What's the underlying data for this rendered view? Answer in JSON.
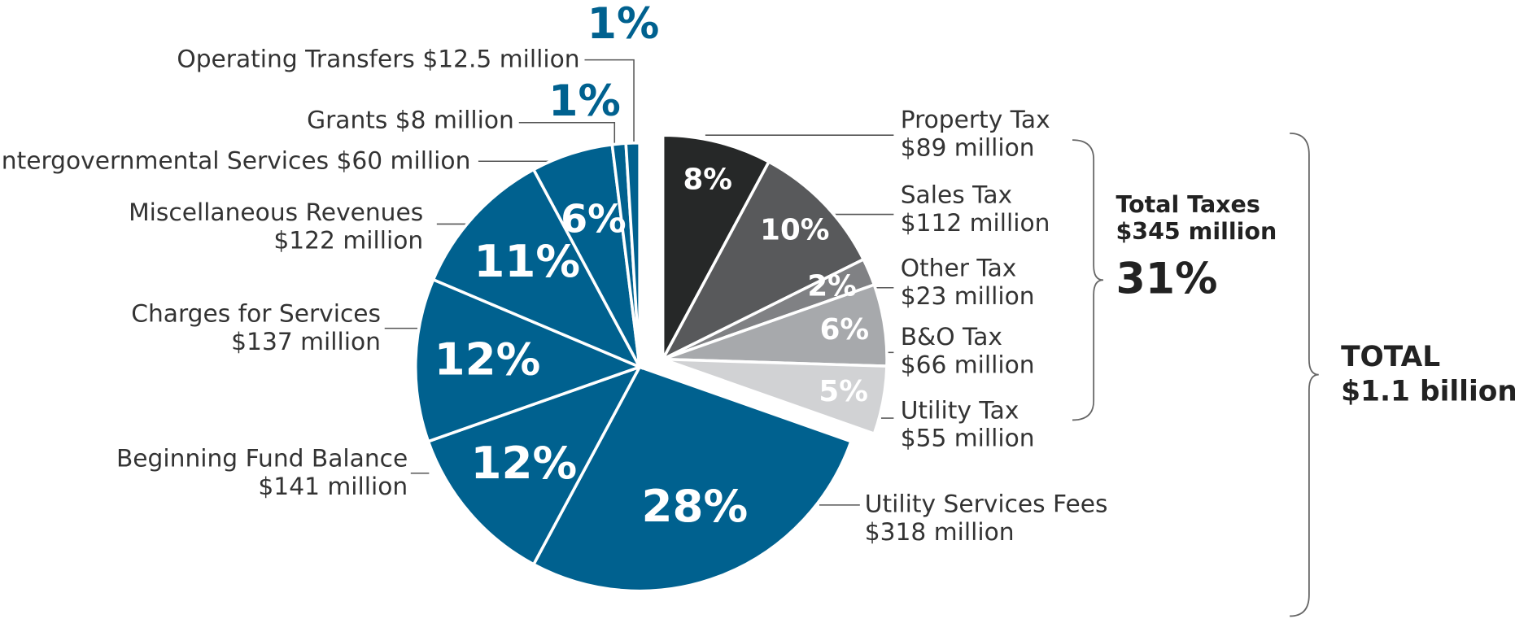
{
  "chart_data": {
    "type": "pie",
    "categories": [
      "Property Tax",
      "Sales Tax",
      "Other Tax",
      "B&O Tax",
      "Utility Tax",
      "Utility Services Fees",
      "Beginning Fund Balance",
      "Charges for Services",
      "Miscellaneous Revenues",
      "Intergovernmental Services",
      "Grants",
      "Operating Transfers"
    ],
    "amount_labels": [
      "$89 million",
      "$112 million",
      "$23 million",
      "$66 million",
      "$55 million",
      "$318 million",
      "$141 million",
      "$137 million",
      "$122 million",
      "$60 million",
      "$8 million",
      "$12.5 million"
    ],
    "values": [
      8,
      10,
      2,
      6,
      5,
      28,
      12,
      12,
      11,
      6,
      1,
      1
    ],
    "value_labels": [
      "8%",
      "10%",
      "2%",
      "6%",
      "5%",
      "28%",
      "12%",
      "12%",
      "11%",
      "6%",
      "1%",
      "1%"
    ],
    "colors": [
      "#262828",
      "#58595b",
      "#808184",
      "#a7a9ac",
      "#d1d2d4",
      "#00618f",
      "#00618f",
      "#00618f",
      "#00618f",
      "#00618f",
      "#00618f",
      "#00618f"
    ],
    "annotations": {
      "taxes_title": "Total Taxes",
      "taxes_amount": "$345 million",
      "taxes_percent": "31%",
      "total_title": "TOTAL",
      "total_amount": "$1.1 billion"
    }
  }
}
